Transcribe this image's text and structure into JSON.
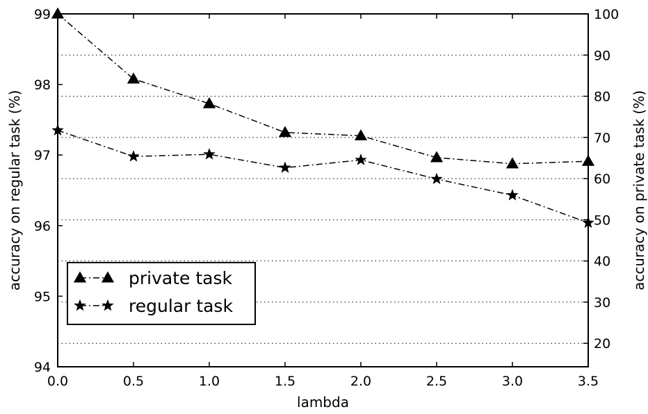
{
  "chart_data": {
    "type": "line",
    "title": "",
    "xlabel": "lambda",
    "ylabel_left": "accuracy on regular task (%)",
    "ylabel_right": "accuracy on private task (%)",
    "x": [
      0.0,
      0.5,
      1.0,
      1.5,
      2.0,
      2.5,
      3.0,
      3.5
    ],
    "x_ticks": [
      "0.0",
      "0.5",
      "1.0",
      "1.5",
      "2.0",
      "2.5",
      "3.0",
      "3.5"
    ],
    "xlim": [
      0.0,
      3.5
    ],
    "ylim_left": [
      94,
      99
    ],
    "yticks_left": [
      "94",
      "95",
      "96",
      "97",
      "98",
      "99"
    ],
    "ylim_right": [
      14.3,
      100
    ],
    "yticks_right": [
      "20",
      "30",
      "40",
      "50",
      "60",
      "70",
      "80",
      "90",
      "100"
    ],
    "grid": "horizontal dotted at right-axis ticks",
    "legend_position": "lower-left",
    "series": [
      {
        "name": "private task",
        "axis": "right",
        "marker": "triangle",
        "line_style": "dash-dot",
        "color": "#000000",
        "values": [
          100,
          84.2,
          78.2,
          71.2,
          70.4,
          65.1,
          63.6,
          64.2
        ]
      },
      {
        "name": "regular task",
        "axis": "left",
        "marker": "star",
        "line_style": "dash-dot",
        "color": "#000000",
        "values": [
          97.35,
          96.98,
          97.01,
          96.82,
          96.93,
          96.66,
          96.43,
          96.04
        ]
      }
    ]
  }
}
